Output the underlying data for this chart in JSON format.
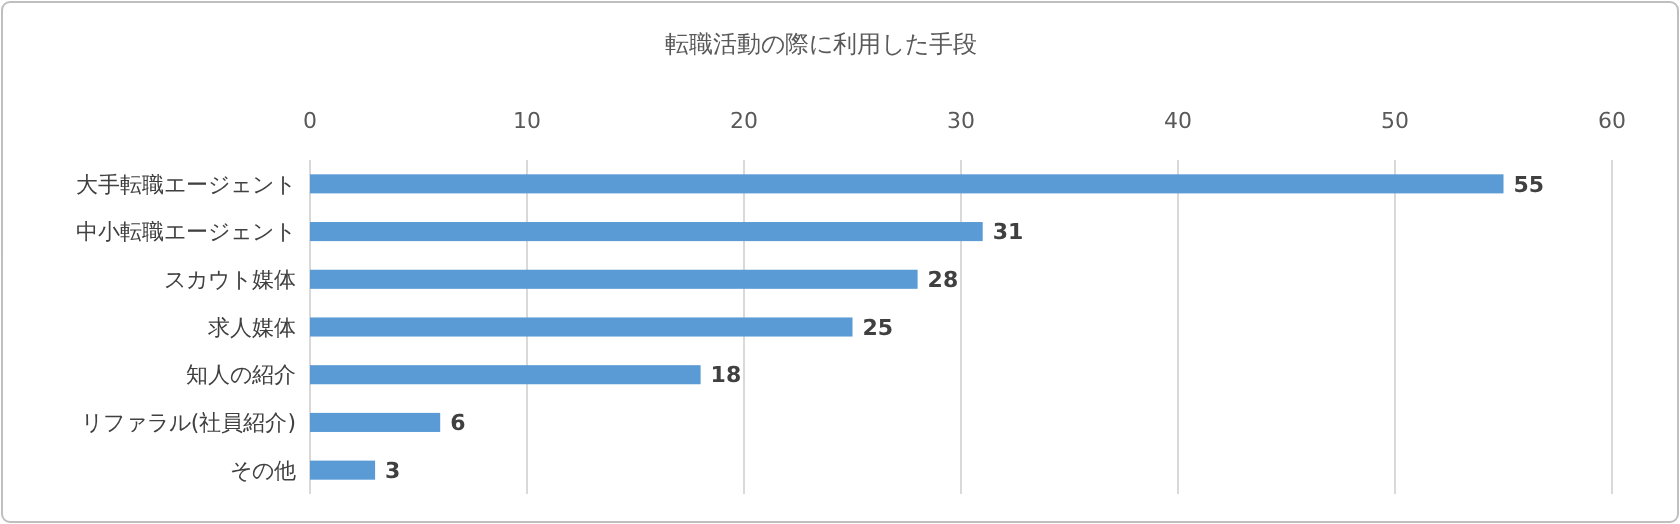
{
  "chart_data": {
    "type": "bar",
    "title": "転職活動の際に利用した手段",
    "orientation": "horizontal",
    "categories": [
      "大手転職エージェント",
      "中小転職エージェント",
      "スカウト媒体",
      "求人媒体",
      "知人の紹介",
      "リファラル(社員紹介)",
      "その他"
    ],
    "values": [
      55,
      31,
      28,
      25,
      18,
      6,
      3
    ],
    "color": "#5b9bd5",
    "xlim": [
      0,
      60
    ],
    "xticks": [
      0,
      10,
      20,
      30,
      40,
      50,
      60
    ],
    "grid": "x",
    "data_labels": true
  }
}
